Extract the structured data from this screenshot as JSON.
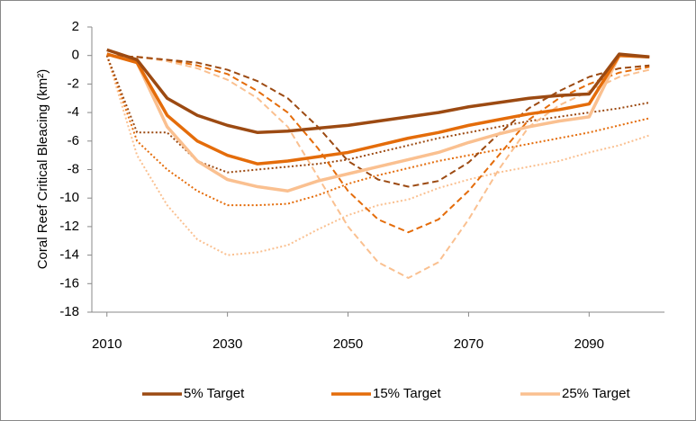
{
  "chart_data": {
    "type": "line",
    "y_label": "Coral Reef Critical Bleacing (km²)",
    "x": [
      2010,
      2015,
      2020,
      2025,
      2030,
      2035,
      2040,
      2045,
      2050,
      2055,
      2060,
      2065,
      2070,
      2075,
      2080,
      2085,
      2090,
      2095,
      2100
    ],
    "xlim": [
      2007.5,
      2102.5
    ],
    "xticks": [
      2010,
      2030,
      2050,
      2070,
      2090
    ],
    "ylim": [
      -18,
      2
    ],
    "yticks": [
      -18,
      -16,
      -14,
      -12,
      -10,
      -8,
      -6,
      -4,
      -2,
      0,
      2
    ],
    "grid": false,
    "legend": "bottom",
    "series": [
      {
        "name": "5% Target",
        "color": "#9c4a12",
        "style": "solid",
        "values": [
          0.4,
          -0.3,
          -3,
          -4.2,
          -4.9,
          -5.4,
          -5.3,
          -5.1,
          -4.9,
          -4.6,
          -4.3,
          -4.0,
          -3.6,
          -3.3,
          -3.0,
          -2.8,
          -2.7,
          0.1,
          -0.1
        ]
      },
      {
        "name": "15% Target",
        "color": "#e46c0a",
        "style": "solid",
        "values": [
          0.1,
          -0.5,
          -4.2,
          -6,
          -7,
          -7.6,
          -7.4,
          -7.1,
          -6.8,
          -6.3,
          -5.8,
          -5.4,
          -4.9,
          -4.5,
          -4.1,
          -3.8,
          -3.4,
          0,
          -0.1
        ]
      },
      {
        "name": "25% Target",
        "color": "#fac090",
        "style": "solid",
        "values": [
          0.1,
          -0.5,
          -5,
          -7.4,
          -8.7,
          -9.2,
          -9.5,
          -8.8,
          -8.3,
          -7.8,
          -7.3,
          -6.8,
          -6.1,
          -5.5,
          -5.0,
          -4.6,
          -4.3,
          0,
          -0.1
        ]
      },
      {
        "color": "#9c4a12",
        "style": "dashed",
        "values": [
          0,
          -0.1,
          -0.3,
          -0.5,
          -1,
          -1.8,
          -3,
          -5,
          -7.4,
          -8.7,
          -9.2,
          -8.8,
          -7.5,
          -5.5,
          -3.7,
          -2.5,
          -1.5,
          -0.9,
          -0.7
        ]
      },
      {
        "color": "#e46c0a",
        "style": "dashed",
        "values": [
          0,
          -0.1,
          -0.3,
          -0.7,
          -1.3,
          -2.5,
          -4,
          -6.5,
          -9.5,
          -11.5,
          -12.4,
          -11.5,
          -9.5,
          -7,
          -4.5,
          -3,
          -2,
          -1.2,
          -0.8
        ]
      },
      {
        "color": "#fac090",
        "style": "dashed",
        "values": [
          0,
          -0.1,
          -0.4,
          -0.9,
          -1.7,
          -3,
          -5,
          -8.5,
          -12,
          -14.5,
          -15.6,
          -14.5,
          -11.5,
          -8,
          -5,
          -3.5,
          -2.5,
          -1.5,
          -1
        ]
      },
      {
        "color": "#9c4a12",
        "style": "dotted",
        "values": [
          0,
          -5.4,
          -5.4,
          -7.4,
          -8.2,
          -8.0,
          -7.8,
          -7.6,
          -7.3,
          -6.8,
          -6.3,
          -5.8,
          -5.4,
          -5.0,
          -4.6,
          -4.3,
          -4.0,
          -3.7,
          -3.3
        ]
      },
      {
        "color": "#e46c0a",
        "style": "dotted",
        "values": [
          0,
          -6,
          -8,
          -9.5,
          -10.5,
          -10.5,
          -10.4,
          -9.8,
          -9.0,
          -8.4,
          -7.9,
          -7.4,
          -7.0,
          -6.6,
          -6.2,
          -5.8,
          -5.4,
          -4.9,
          -4.4
        ]
      },
      {
        "color": "#fac090",
        "style": "dotted",
        "values": [
          0,
          -7,
          -10.5,
          -12.9,
          -14,
          -13.8,
          -13.3,
          -12.2,
          -11.2,
          -10.5,
          -10.1,
          -9.3,
          -8.7,
          -8.2,
          -7.8,
          -7.4,
          -6.8,
          -6.3,
          -5.6
        ]
      }
    ]
  }
}
